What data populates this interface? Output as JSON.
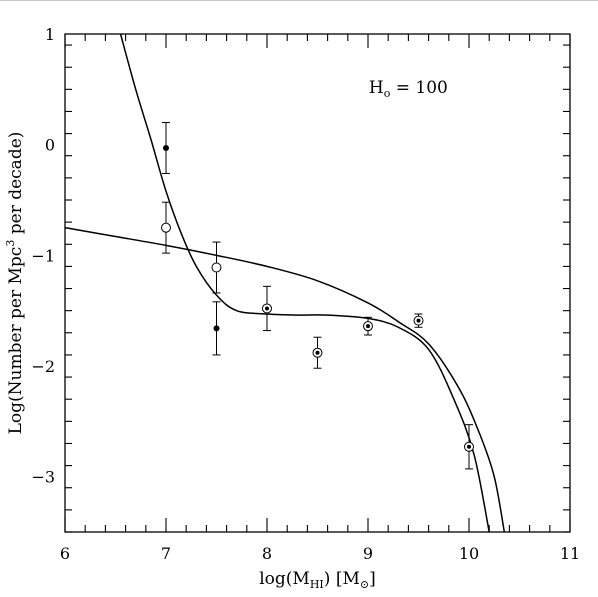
{
  "chart_data": {
    "type": "scatter",
    "xlabel": "log(M",
    "xlabel_sub": "HI",
    "xlabel_tail": ")   [M",
    "xlabel_sun": "⊙",
    "xlabel_end": "]",
    "ylabel": "Log(Number per Mpc",
    "ylabel_sup": "3",
    "ylabel_tail": " per decade)",
    "annotation": {
      "text": "H",
      "sub": "o",
      "rest": " = 100",
      "x": 9.4,
      "y": 0.52
    },
    "xlim": [
      6,
      11
    ],
    "ylim": [
      -3.5,
      1
    ],
    "x_ticks": [
      6,
      7,
      8,
      9,
      10,
      11
    ],
    "x_tick_labels": [
      "6",
      "7",
      "8",
      "9",
      "10",
      "11"
    ],
    "y_ticks": [
      1,
      0,
      -1,
      -2,
      -3
    ],
    "y_tick_labels": [
      "1",
      "0",
      "−1",
      "−2",
      "−3"
    ],
    "series": [
      {
        "marker": "filled",
        "points": [
          {
            "x": 7.0,
            "y": -0.03,
            "err_lo": 0.23,
            "err_hi": 0.23
          },
          {
            "x": 7.5,
            "y": -1.66,
            "err_lo": 0.24,
            "err_hi": 0.24
          }
        ]
      },
      {
        "marker": "open",
        "points": [
          {
            "x": 7.0,
            "y": -0.75,
            "err_lo": 0.23,
            "err_hi": 0.23
          },
          {
            "x": 7.5,
            "y": -1.11,
            "err_lo": 0.23,
            "err_hi": 0.23
          }
        ]
      },
      {
        "marker": "dotted-circle",
        "points": [
          {
            "x": 8.0,
            "y": -1.48,
            "err_lo": 0.2,
            "err_hi": 0.2
          },
          {
            "x": 8.5,
            "y": -1.88,
            "err_lo": 0.14,
            "err_hi": 0.14
          },
          {
            "x": 9.0,
            "y": -1.64,
            "err_lo": 0.08,
            "err_hi": 0.08
          },
          {
            "x": 9.5,
            "y": -1.59,
            "err_lo": 0.06,
            "err_hi": 0.06
          },
          {
            "x": 10.0,
            "y": -2.73,
            "err_lo": 0.2,
            "err_hi": 0.2
          }
        ]
      }
    ],
    "curves": [
      {
        "points": [
          [
            6.55,
            1.0
          ],
          [
            6.7,
            0.5
          ],
          [
            6.85,
            0.05
          ],
          [
            7.0,
            -0.42
          ],
          [
            7.15,
            -0.8
          ],
          [
            7.3,
            -1.1
          ],
          [
            7.5,
            -1.36
          ],
          [
            7.7,
            -1.5
          ],
          [
            8.0,
            -1.53
          ],
          [
            8.3,
            -1.54
          ],
          [
            8.6,
            -1.54
          ],
          [
            9.0,
            -1.57
          ],
          [
            9.3,
            -1.65
          ],
          [
            9.6,
            -1.85
          ],
          [
            9.85,
            -2.3
          ],
          [
            10.05,
            -2.8
          ],
          [
            10.2,
            -3.5
          ]
        ]
      },
      {
        "points": [
          [
            6.0,
            -0.75
          ],
          [
            6.5,
            -0.83
          ],
          [
            7.0,
            -0.91
          ],
          [
            7.5,
            -1.0
          ],
          [
            8.0,
            -1.1
          ],
          [
            8.5,
            -1.23
          ],
          [
            9.0,
            -1.43
          ],
          [
            9.3,
            -1.6
          ],
          [
            9.6,
            -1.8
          ],
          [
            9.9,
            -2.2
          ],
          [
            10.1,
            -2.6
          ],
          [
            10.25,
            -3.0
          ],
          [
            10.35,
            -3.5
          ]
        ]
      }
    ]
  }
}
